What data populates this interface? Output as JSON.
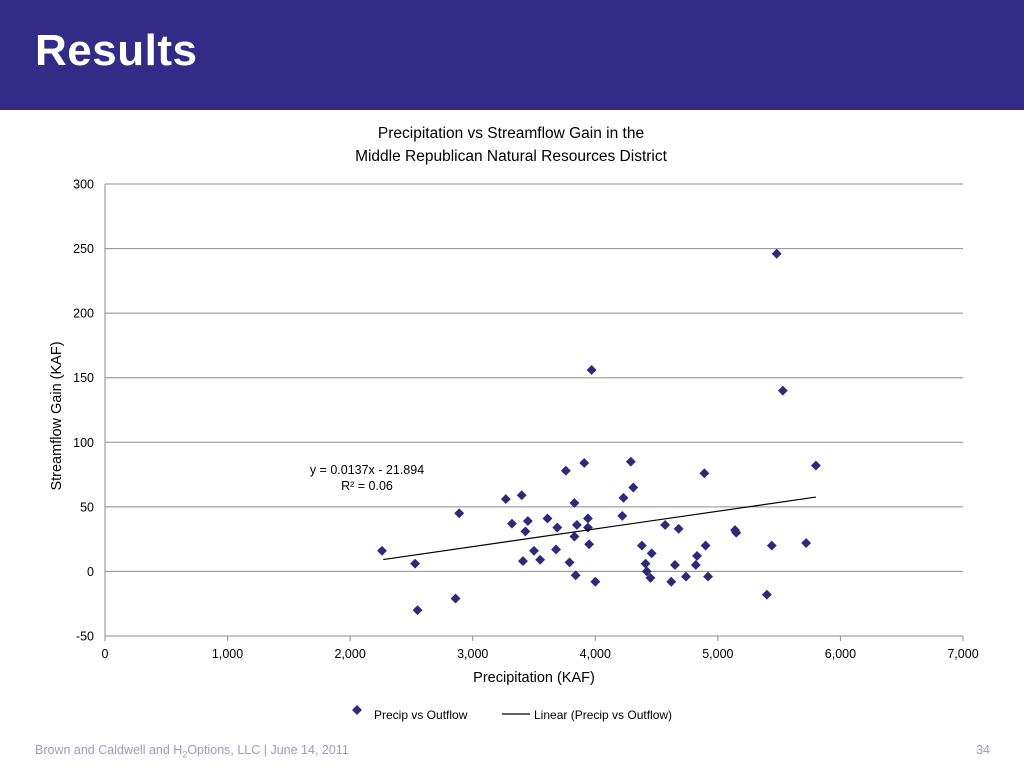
{
  "slide": {
    "title": "Results",
    "footer_prefix": "Brown and Caldwell  and H",
    "footer_sub": "2",
    "footer_suffix": "Options, LLC | June 14, 2011",
    "page_number": "34",
    "header_color": "#332b85",
    "marker_color": "#2e2a7a"
  },
  "chart_data": {
    "type": "scatter",
    "title_line1": "Precipitation vs Streamflow Gain in the",
    "title_line2": "Middle Republican Natural Resources District",
    "xlabel": "Precipitation (KAF)",
    "ylabel": "Streamflow Gain (KAF)",
    "xlim": [
      0,
      7000
    ],
    "ylim": [
      -50,
      300
    ],
    "xticks": [
      0,
      1000,
      2000,
      3000,
      4000,
      5000,
      6000,
      7000
    ],
    "xtick_labels": [
      "0",
      "1,000",
      "2,000",
      "3,000",
      "4,000",
      "5,000",
      "6,000",
      "7,000"
    ],
    "yticks": [
      -50,
      0,
      50,
      100,
      150,
      200,
      250,
      300
    ],
    "ytick_labels": [
      "-50",
      "0",
      "50",
      "100",
      "150",
      "200",
      "250",
      "300"
    ],
    "grid": true,
    "series_name": "Precip vs Outflow",
    "trendline_name": "Linear (Precip vs Outflow)",
    "equation": "y = 0.0137x - 21.894",
    "r_squared": "R² = 0.06",
    "trendline": {
      "slope": 0.0137,
      "intercept": -21.894,
      "x_start": 2270,
      "x_end": 5800
    },
    "points": [
      [
        2260,
        16
      ],
      [
        2530,
        6
      ],
      [
        2550,
        -30
      ],
      [
        2860,
        -21
      ],
      [
        2890,
        45
      ],
      [
        3270,
        56
      ],
      [
        3320,
        37
      ],
      [
        3400,
        59
      ],
      [
        3410,
        8
      ],
      [
        3430,
        31
      ],
      [
        3450,
        39
      ],
      [
        3500,
        16
      ],
      [
        3550,
        9
      ],
      [
        3610,
        41
      ],
      [
        3680,
        17
      ],
      [
        3690,
        34
      ],
      [
        3760,
        78
      ],
      [
        3790,
        7
      ],
      [
        3830,
        53
      ],
      [
        3830,
        27
      ],
      [
        3840,
        -3
      ],
      [
        3850,
        36
      ],
      [
        3910,
        84
      ],
      [
        3940,
        34
      ],
      [
        3940,
        41
      ],
      [
        3950,
        21
      ],
      [
        3970,
        156
      ],
      [
        4000,
        -8
      ],
      [
        4220,
        43
      ],
      [
        4230,
        57
      ],
      [
        4290,
        85
      ],
      [
        4310,
        65
      ],
      [
        4380,
        20
      ],
      [
        4410,
        6
      ],
      [
        4420,
        0
      ],
      [
        4450,
        -5
      ],
      [
        4460,
        14
      ],
      [
        4570,
        36
      ],
      [
        4620,
        -8
      ],
      [
        4650,
        5
      ],
      [
        4680,
        33
      ],
      [
        4740,
        -4
      ],
      [
        4820,
        5
      ],
      [
        4830,
        12
      ],
      [
        4890,
        76
      ],
      [
        4900,
        20
      ],
      [
        4920,
        -4
      ],
      [
        5140,
        32
      ],
      [
        5150,
        30
      ],
      [
        5400,
        -18
      ],
      [
        5440,
        20
      ],
      [
        5480,
        246
      ],
      [
        5530,
        140
      ],
      [
        5720,
        22
      ],
      [
        5800,
        82
      ]
    ]
  }
}
